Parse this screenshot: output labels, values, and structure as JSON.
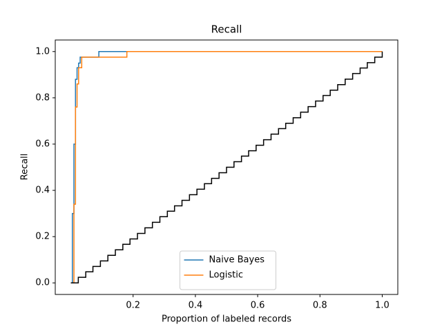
{
  "chart_data": {
    "type": "line",
    "drawstyle": "steps-post",
    "title": "Recall",
    "xlabel": "Proportion of labeled records",
    "ylabel": "Recall",
    "xlim": [
      -0.05,
      1.05
    ],
    "ylim": [
      -0.05,
      1.05
    ],
    "xticks": [
      0.2,
      0.4,
      0.6,
      0.8,
      {
        "value": 1,
        "label": "1.0"
      }
    ],
    "yticks": [
      {
        "value": 0,
        "label": "0.0"
      },
      0.2,
      0.4,
      0.6,
      0.8,
      {
        "value": 1,
        "label": "1.0"
      }
    ],
    "legend": "lower center",
    "series": [
      {
        "name": "Naive Bayes",
        "color": "#1f77b4",
        "x": [
          0,
          0.005,
          0.01,
          0.015,
          0.02,
          0.025,
          0.03,
          0.09,
          1.0
        ],
        "values": [
          0,
          0.3,
          0.6,
          0.88,
          0.93,
          0.95,
          0.976,
          1.0,
          1.0
        ]
      },
      {
        "name": "Logistic",
        "color": "#ff7f0e",
        "x": [
          0,
          0.01,
          0.015,
          0.02,
          0.025,
          0.035,
          0.18,
          1.0
        ],
        "values": [
          0,
          0.34,
          0.76,
          0.86,
          0.93,
          0.976,
          1.0,
          1.0
        ]
      },
      {
        "color": "#000000",
        "x": [
          0,
          0.024,
          0.048,
          0.071,
          0.095,
          0.119,
          0.143,
          0.167,
          0.19,
          0.214,
          0.238,
          0.262,
          0.286,
          0.31,
          0.333,
          0.357,
          0.381,
          0.405,
          0.429,
          0.452,
          0.476,
          0.5,
          0.524,
          0.548,
          0.571,
          0.595,
          0.619,
          0.643,
          0.667,
          0.69,
          0.714,
          0.738,
          0.762,
          0.786,
          0.81,
          0.833,
          0.857,
          0.881,
          0.905,
          0.929,
          0.952,
          0.976,
          1.0
        ],
        "values": [
          0,
          0.024,
          0.048,
          0.071,
          0.095,
          0.119,
          0.143,
          0.167,
          0.19,
          0.214,
          0.238,
          0.262,
          0.286,
          0.31,
          0.333,
          0.357,
          0.381,
          0.405,
          0.429,
          0.452,
          0.476,
          0.5,
          0.524,
          0.548,
          0.571,
          0.595,
          0.619,
          0.643,
          0.667,
          0.69,
          0.714,
          0.738,
          0.762,
          0.786,
          0.81,
          0.833,
          0.857,
          0.881,
          0.905,
          0.929,
          0.952,
          0.976,
          1.0
        ]
      }
    ]
  }
}
